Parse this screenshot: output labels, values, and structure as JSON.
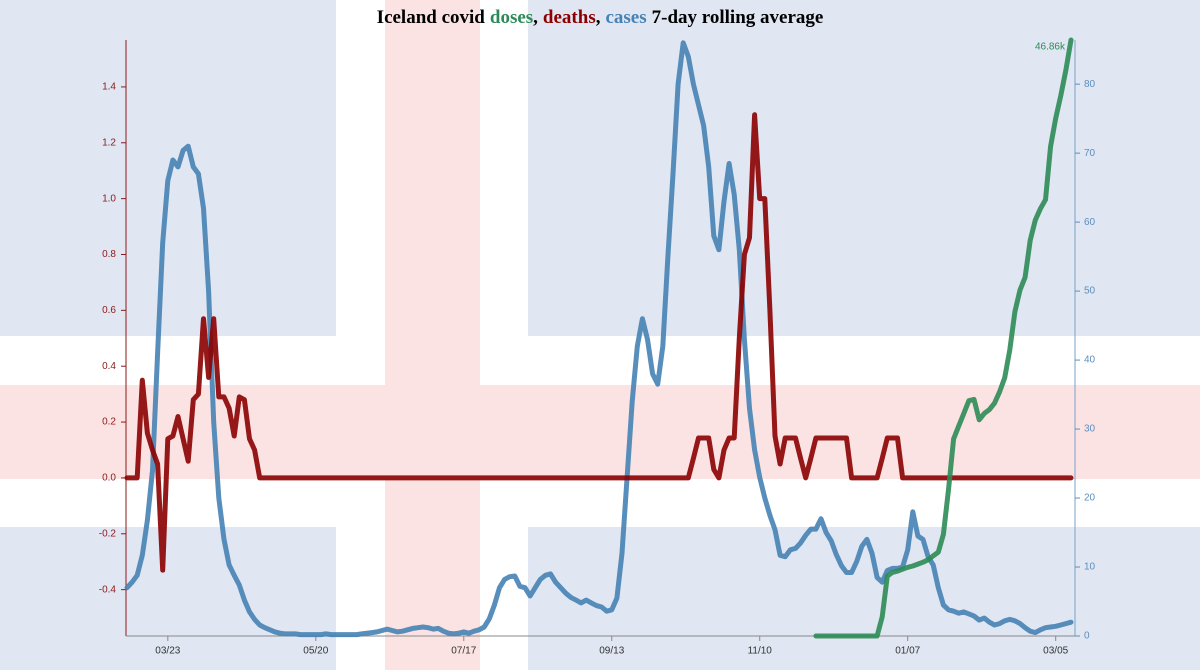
{
  "chart_data": {
    "type": "line",
    "title_prefix": "Iceland covid",
    "title_separator": ",",
    "title_suffix": "7-day rolling average",
    "categories": [
      null,
      null,
      null,
      null,
      null,
      null,
      null,
      null,
      "03/23",
      null,
      null,
      null,
      null,
      null,
      null,
      null,
      null,
      null,
      null,
      null,
      null,
      null,
      null,
      null,
      null,
      null,
      null,
      null,
      null,
      null,
      null,
      null,
      null,
      null,
      null,
      null,
      null,
      "05/20",
      null,
      null,
      null,
      null,
      null,
      null,
      null,
      null,
      null,
      null,
      null,
      null,
      null,
      null,
      null,
      null,
      null,
      null,
      null,
      null,
      null,
      null,
      null,
      null,
      null,
      null,
      null,
      null,
      "07/17",
      null,
      null,
      null,
      null,
      null,
      null,
      null,
      null,
      null,
      null,
      null,
      null,
      null,
      null,
      null,
      null,
      null,
      null,
      null,
      null,
      null,
      null,
      null,
      null,
      null,
      null,
      null,
      null,
      "09/13",
      null,
      null,
      null,
      null,
      null,
      null,
      null,
      null,
      null,
      null,
      null,
      null,
      null,
      null,
      null,
      null,
      null,
      null,
      null,
      null,
      null,
      null,
      null,
      null,
      null,
      null,
      null,
      null,
      "11/10",
      null,
      null,
      null,
      null,
      null,
      null,
      null,
      null,
      null,
      null,
      null,
      null,
      null,
      null,
      null,
      null,
      null,
      null,
      null,
      null,
      null,
      null,
      null,
      null,
      null,
      null,
      null,
      null,
      "01/07",
      null,
      null,
      null,
      null,
      null,
      null,
      null,
      null,
      null,
      null,
      null,
      null,
      null,
      null,
      null,
      null,
      null,
      null,
      null,
      null,
      null,
      null,
      null,
      null,
      null,
      null,
      null,
      null,
      "03/05",
      null,
      null,
      null
    ],
    "series": [
      {
        "name": "doses",
        "color": "#2e8b57",
        "axis": "y3",
        "values": [
          null,
          null,
          null,
          null,
          null,
          null,
          null,
          null,
          null,
          null,
          null,
          null,
          null,
          null,
          null,
          null,
          null,
          null,
          null,
          null,
          null,
          null,
          null,
          null,
          null,
          null,
          null,
          null,
          null,
          null,
          null,
          null,
          null,
          null,
          null,
          null,
          null,
          null,
          null,
          null,
          null,
          null,
          null,
          null,
          null,
          null,
          null,
          null,
          null,
          null,
          null,
          null,
          null,
          null,
          null,
          null,
          null,
          null,
          null,
          null,
          null,
          null,
          null,
          null,
          null,
          null,
          null,
          null,
          null,
          null,
          null,
          null,
          null,
          null,
          null,
          null,
          null,
          null,
          null,
          null,
          null,
          null,
          null,
          null,
          null,
          null,
          null,
          null,
          null,
          null,
          null,
          null,
          null,
          null,
          null,
          null,
          null,
          null,
          null,
          null,
          null,
          null,
          null,
          null,
          null,
          null,
          null,
          null,
          null,
          null,
          null,
          null,
          null,
          null,
          null,
          null,
          null,
          null,
          null,
          null,
          null,
          null,
          null,
          null,
          null,
          null,
          null,
          null,
          null,
          null,
          null,
          null,
          null,
          null,
          null,
          0,
          0,
          0,
          0,
          0,
          0,
          0,
          0,
          0,
          0,
          0,
          0,
          0,
          1500,
          4700,
          5000,
          5100,
          5250,
          5400,
          5500,
          5650,
          5800,
          6000,
          6300,
          6600,
          8000,
          11500,
          15500,
          16500,
          17500,
          18500,
          18600,
          17000,
          17500,
          17800,
          18300,
          19200,
          20300,
          22500,
          25500,
          27200,
          28200,
          31100,
          32700,
          33600,
          34300,
          38500,
          40700,
          42500,
          44500,
          46860
        ],
        "value_labels": [
          null,
          null,
          null,
          null,
          null,
          null,
          null,
          null,
          null,
          null,
          null,
          null,
          null,
          null,
          null,
          null,
          null,
          null,
          null,
          null,
          null,
          null,
          null,
          null,
          null,
          null,
          null,
          null,
          null,
          null,
          null,
          null,
          null,
          null,
          null,
          null,
          null,
          null,
          null,
          null,
          null,
          null,
          null,
          null,
          null,
          null,
          null,
          null,
          null,
          null,
          null,
          null,
          null,
          null,
          null,
          null,
          null,
          null,
          null,
          null,
          null,
          null,
          null,
          null,
          null,
          null,
          null,
          null,
          null,
          null,
          null,
          null,
          null,
          null,
          null,
          null,
          null,
          null,
          null,
          null,
          null,
          null,
          null,
          null,
          null,
          null,
          null,
          null,
          null,
          null,
          null,
          null,
          null,
          null,
          null,
          null,
          null,
          null,
          null,
          null,
          null,
          null,
          null,
          null,
          null,
          null,
          null,
          null,
          null,
          null,
          null,
          null,
          null,
          null,
          null,
          null,
          null,
          null,
          null,
          null,
          null,
          null,
          null,
          null,
          null,
          null,
          null,
          null,
          null,
          null,
          null,
          null,
          null,
          null,
          null,
          null,
          null,
          null,
          null,
          null,
          null,
          null,
          null,
          null,
          null,
          null,
          null,
          null,
          null,
          null,
          null,
          null,
          null,
          null,
          null,
          null,
          null,
          null,
          null,
          null,
          null,
          null,
          null,
          null,
          null,
          null,
          null,
          null,
          null,
          null,
          null,
          null,
          null,
          null,
          null,
          null,
          null,
          null,
          null,
          null,
          null,
          null,
          null,
          null,
          null,
          "46.86k"
        ]
      },
      {
        "name": "deaths",
        "color": "#8b0000",
        "axis": "y",
        "values": [
          0,
          0,
          0,
          0.35,
          0.16,
          0.1,
          0.05,
          -0.33,
          0.14,
          0.15,
          0.22,
          0.14,
          0.06,
          0.28,
          0.3,
          0.57,
          0.36,
          0.57,
          0.29,
          0.29,
          0.25,
          0.15,
          0.29,
          0.28,
          0.14,
          0.1,
          0,
          0,
          0,
          0,
          0,
          0,
          0,
          0,
          0,
          0,
          0,
          0,
          0,
          0,
          0,
          0,
          0,
          0,
          0,
          0,
          0,
          0,
          0,
          0,
          0,
          0,
          0,
          0,
          0,
          0,
          0,
          0,
          0,
          0,
          0,
          0,
          0,
          0,
          0,
          0,
          0,
          0,
          0,
          0,
          0,
          0,
          0,
          0,
          0,
          0,
          0,
          0,
          0,
          0,
          0,
          0,
          0,
          0,
          0,
          0,
          0,
          0,
          0,
          0,
          0,
          0,
          0,
          0,
          0,
          0,
          0,
          0,
          0,
          0,
          0,
          0,
          0,
          0,
          0,
          0,
          0,
          0,
          0,
          0,
          0,
          0.07,
          0.143,
          0.143,
          0.143,
          0.03,
          0,
          0.1,
          0.143,
          0.143,
          0.5,
          0.8,
          0.86,
          1.3,
          1.0,
          1.0,
          0.6,
          0.15,
          0.05,
          0.143,
          0.143,
          0.143,
          0.07,
          0,
          0.07,
          0.143,
          0.143,
          0.143,
          0.143,
          0.143,
          0.143,
          0.143,
          0,
          0,
          0,
          0,
          0,
          0,
          0.07,
          0.143,
          0.143,
          0.143,
          0,
          0,
          0,
          0,
          0,
          0,
          0,
          0,
          0,
          0,
          0,
          0,
          0,
          0,
          0,
          0,
          0,
          0,
          0,
          0,
          0,
          0,
          0,
          0,
          0,
          0,
          0,
          0,
          0,
          0,
          0,
          0,
          0,
          0
        ]
      },
      {
        "name": "cases",
        "color": "#4682b4",
        "axis": "y2",
        "values": [
          7.0,
          7.8,
          8.8,
          11.7,
          16.8,
          24,
          41,
          57,
          66,
          69,
          68,
          70.4,
          71,
          68,
          67,
          62,
          50,
          31,
          20,
          14,
          10.3,
          8.8,
          7.4,
          5.2,
          3.5,
          2.4,
          1.6,
          1.2,
          0.9,
          0.6,
          0.4,
          0.3,
          0.3,
          0.3,
          0.2,
          0.2,
          0.2,
          0.2,
          0.2,
          0.3,
          0.2,
          0.2,
          0.2,
          0.2,
          0.2,
          0.2,
          0.3,
          0.4,
          0.5,
          0.6,
          0.8,
          1.0,
          0.8,
          0.6,
          0.7,
          0.9,
          1.1,
          1.2,
          1.3,
          1.2,
          1.0,
          1.1,
          0.7,
          0.4,
          0.3,
          0.4,
          0.6,
          0.4,
          0.7,
          0.9,
          1.3,
          2.5,
          4.5,
          7.0,
          8.2,
          8.6,
          8.7,
          7.2,
          7.0,
          5.8,
          7.0,
          8.2,
          8.8,
          9.0,
          7.8,
          7.0,
          6.2,
          5.6,
          5.2,
          4.8,
          5.2,
          4.8,
          4.4,
          4.2,
          3.6,
          3.8,
          5.5,
          12,
          23,
          34,
          42,
          46,
          43,
          38,
          36.5,
          42,
          55,
          67,
          80,
          86,
          84,
          80,
          77,
          74,
          68,
          58,
          56,
          63,
          68.5,
          64,
          56,
          43,
          33,
          27,
          23,
          20,
          17.5,
          15.4,
          11.7,
          11.5,
          12.5,
          12.7,
          13.5,
          14.6,
          15.5,
          15.5,
          17,
          15,
          13.8,
          11.8,
          10.2,
          9.2,
          9.2,
          10.8,
          13,
          14,
          12,
          8.5,
          7.8,
          9.5,
          9.8,
          9.8,
          10,
          12.5,
          18,
          14.5,
          14,
          11.5,
          10.3,
          7,
          4.5,
          3.8,
          3.6,
          3.3,
          3.5,
          3.2,
          2.9,
          2.3,
          2.6,
          2.0,
          1.6,
          1.8,
          2.2,
          2.4,
          2.2,
          1.8,
          1.2,
          0.7,
          0.5,
          0.9,
          1.2,
          1.3,
          1.4,
          1.6,
          1.8,
          2.0
        ]
      }
    ],
    "ylim": [
      -0.566,
      1.568
    ],
    "yticks": [
      -0.4,
      -0.2,
      {
        "value": 0,
        "label": "0.0"
      },
      0.2,
      0.4,
      0.6,
      0.8,
      {
        "value": 1,
        "label": "1.0"
      },
      1.2,
      1.4
    ],
    "y2lim": [
      0,
      86.4
    ],
    "y2ticks": [
      0,
      10,
      20,
      30,
      40,
      50,
      60,
      70,
      80
    ],
    "y3lim": [
      0,
      46860
    ]
  }
}
